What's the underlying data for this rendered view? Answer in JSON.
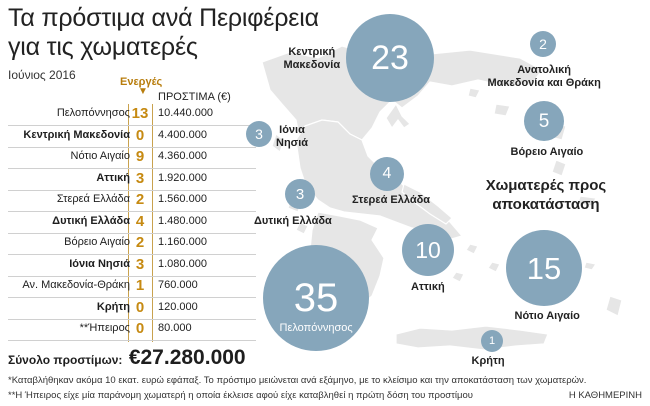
{
  "title_line1": "Τα πρόστιμα ανά Περιφέρεια",
  "title_line2": "για τις χωματερές",
  "subtitle": "Ιούνιος 2016",
  "col_active": "Ενεργές",
  "col_fine": "ΠΡΟΣΤΙΜΑ (€)",
  "rows": [
    {
      "name": "Πελοπόννησος",
      "active": "13",
      "fine": "10.440.000",
      "bold": false
    },
    {
      "name": "Κεντρική Μακεδονία",
      "active": "0",
      "fine": "4.400.000",
      "bold": true
    },
    {
      "name": "Νότιο Αιγαίο",
      "active": "9",
      "fine": "4.360.000",
      "bold": false
    },
    {
      "name": "Αττική",
      "active": "3",
      "fine": "1.920.000",
      "bold": true
    },
    {
      "name": "Στερεά Ελλάδα",
      "active": "2",
      "fine": "1.560.000",
      "bold": false
    },
    {
      "name": "Δυτική Ελλάδα",
      "active": "4",
      "fine": "1.480.000",
      "bold": true
    },
    {
      "name": "Βόρειο Αιγαίο",
      "active": "2",
      "fine": "1.160.000",
      "bold": false
    },
    {
      "name": "Ιόνια Νησιά",
      "active": "3",
      "fine": "1.080.000",
      "bold": true
    },
    {
      "name": "Αν. Μακεδονία-Θράκη",
      "active": "1",
      "fine": "760.000",
      "bold": false
    },
    {
      "name": "Κρήτη",
      "active": "0",
      "fine": "120.000",
      "bold": true
    },
    {
      "name": "**Ήπειρος",
      "active": "0",
      "fine": "80.000",
      "bold": false
    }
  ],
  "total_label": "Σύνολο προστίμων:",
  "total_value": "€27.280.000",
  "note1": "*Καταβλήθηκαν ακόμα 10 εκατ. ευρώ εφάπαξ. Το πρόστιμο μειώνεται ανά εξάμηνο, με το κλείσιμο και την αποκατάσταση των χωματερών.",
  "note2": "**Η Ήπειρος είχε μία παράνομη χωματερή η οποία έκλεισε αφού είχε καταβληθεί η πρώτη δόση του προστίμου",
  "source": "Η ΚΑΘΗΜΕΡΙΝΗ",
  "map_heading": "Χωματερές προς αποκατάσταση",
  "colors": {
    "bubble": "#86a6bb",
    "map": "#e6e6e6",
    "accent": "#c68a12"
  },
  "map_regions": [
    {
      "id": "km",
      "value": "23",
      "label": "Κεντρική\nΜακεδονία"
    },
    {
      "id": "amt",
      "value": "2",
      "label": "Ανατολική\nΜακεδονία και Θράκη"
    },
    {
      "id": "ba",
      "value": "5",
      "label": "Βόρειο Αιγαίο"
    },
    {
      "id": "in",
      "value": "3",
      "label": "Ιόνια\nΝησιά"
    },
    {
      "id": "se",
      "value": "4",
      "label": "Στερεά Ελλάδα"
    },
    {
      "id": "de",
      "value": "3",
      "label": "Δυτική Ελλάδα"
    },
    {
      "id": "at",
      "value": "10",
      "label": "Αττική"
    },
    {
      "id": "na",
      "value": "15",
      "label": "Νότιο Αιγαίο"
    },
    {
      "id": "pel",
      "value": "35",
      "label": "Πελοπόννησος"
    },
    {
      "id": "kr",
      "value": "1",
      "label": "Κρήτη"
    }
  ]
}
